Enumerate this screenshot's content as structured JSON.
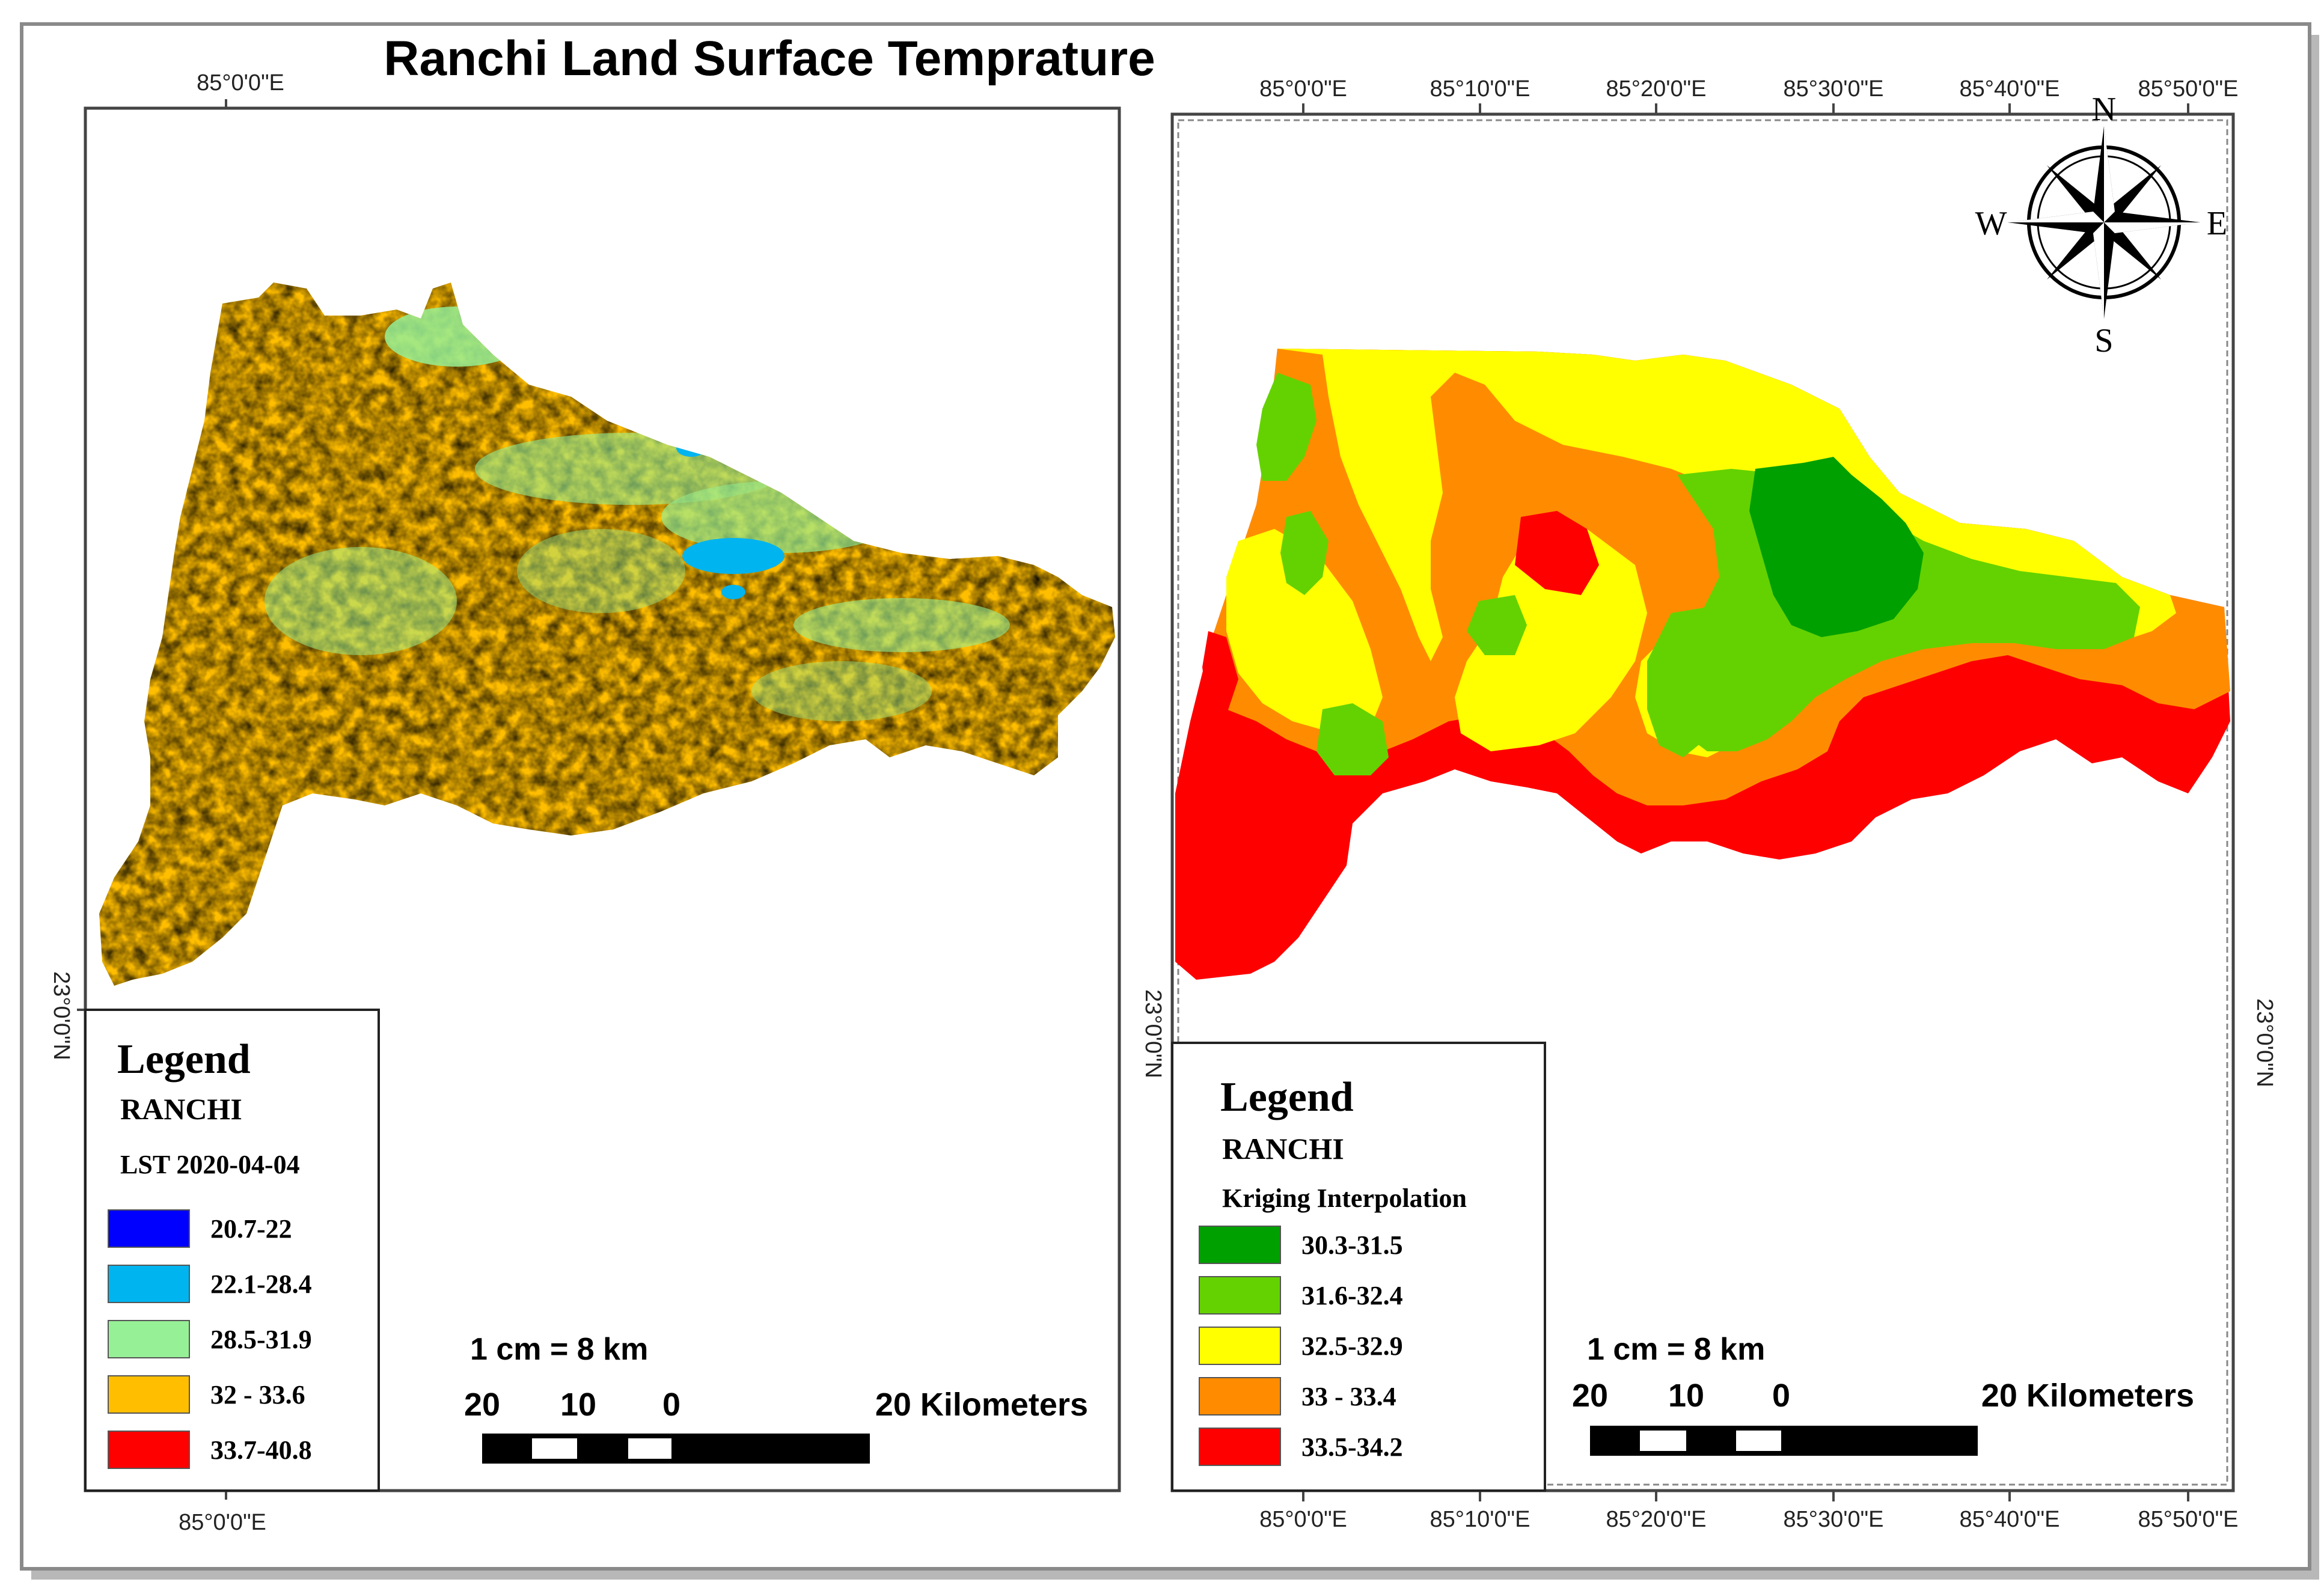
{
  "title": "Ranchi Land Surface Temprature",
  "left_map": {
    "lon_top": "85°0'0\"E",
    "lon_bottom": "85°0'0\"E",
    "lat_left": "23°0'0\"N",
    "legend": {
      "heading": "Legend",
      "layer": "RANCHI",
      "subtitle": "LST 2020-04-04",
      "classes": [
        {
          "label": "20.7-22",
          "color": "#0000ff"
        },
        {
          "label": "22.1-28.4",
          "color": "#00b4f0"
        },
        {
          "label": "28.5-31.9",
          "color": "#96f096"
        },
        {
          "label": "32 - 33.6",
          "color": "#ffbe00"
        },
        {
          "label": "33.7-40.8",
          "color": "#ff0000"
        }
      ]
    },
    "scale": {
      "ratio": "1 cm = 8 km",
      "ticks": [
        "20",
        "10",
        "0"
      ],
      "unit": "20 Kilometers"
    }
  },
  "right_map": {
    "lon_top": [
      "85°0'0\"E",
      "85°10'0\"E",
      "85°20'0\"E",
      "85°30'0\"E",
      "85°40'0\"E",
      "85°50'0\"E"
    ],
    "lon_bottom": [
      "85°0'0\"E",
      "85°10'0\"E",
      "85°20'0\"E",
      "85°30'0\"E",
      "85°40'0\"E",
      "85°50'0\"E"
    ],
    "lat_left": "23°0'0\"N",
    "lat_right": "23°0'0\"N",
    "north_arrow": {
      "n": "N",
      "s": "S",
      "e": "E",
      "w": "W"
    },
    "legend": {
      "heading": "Legend",
      "layer": "RANCHI",
      "subtitle": "Kriging Interpolation",
      "classes": [
        {
          "label": "30.3-31.5",
          "color": "#00a000"
        },
        {
          "label": "31.6-32.4",
          "color": "#64d200"
        },
        {
          "label": "32.5-32.9",
          "color": "#ffff00"
        },
        {
          "label": "33 - 33.4",
          "color": "#ff8c00"
        },
        {
          "label": "33.5-34.2",
          "color": "#ff0000"
        }
      ]
    },
    "scale": {
      "ratio": "1 cm = 8 km",
      "ticks": [
        "20",
        "10",
        "0"
      ],
      "unit": "20 Kilometers"
    }
  }
}
